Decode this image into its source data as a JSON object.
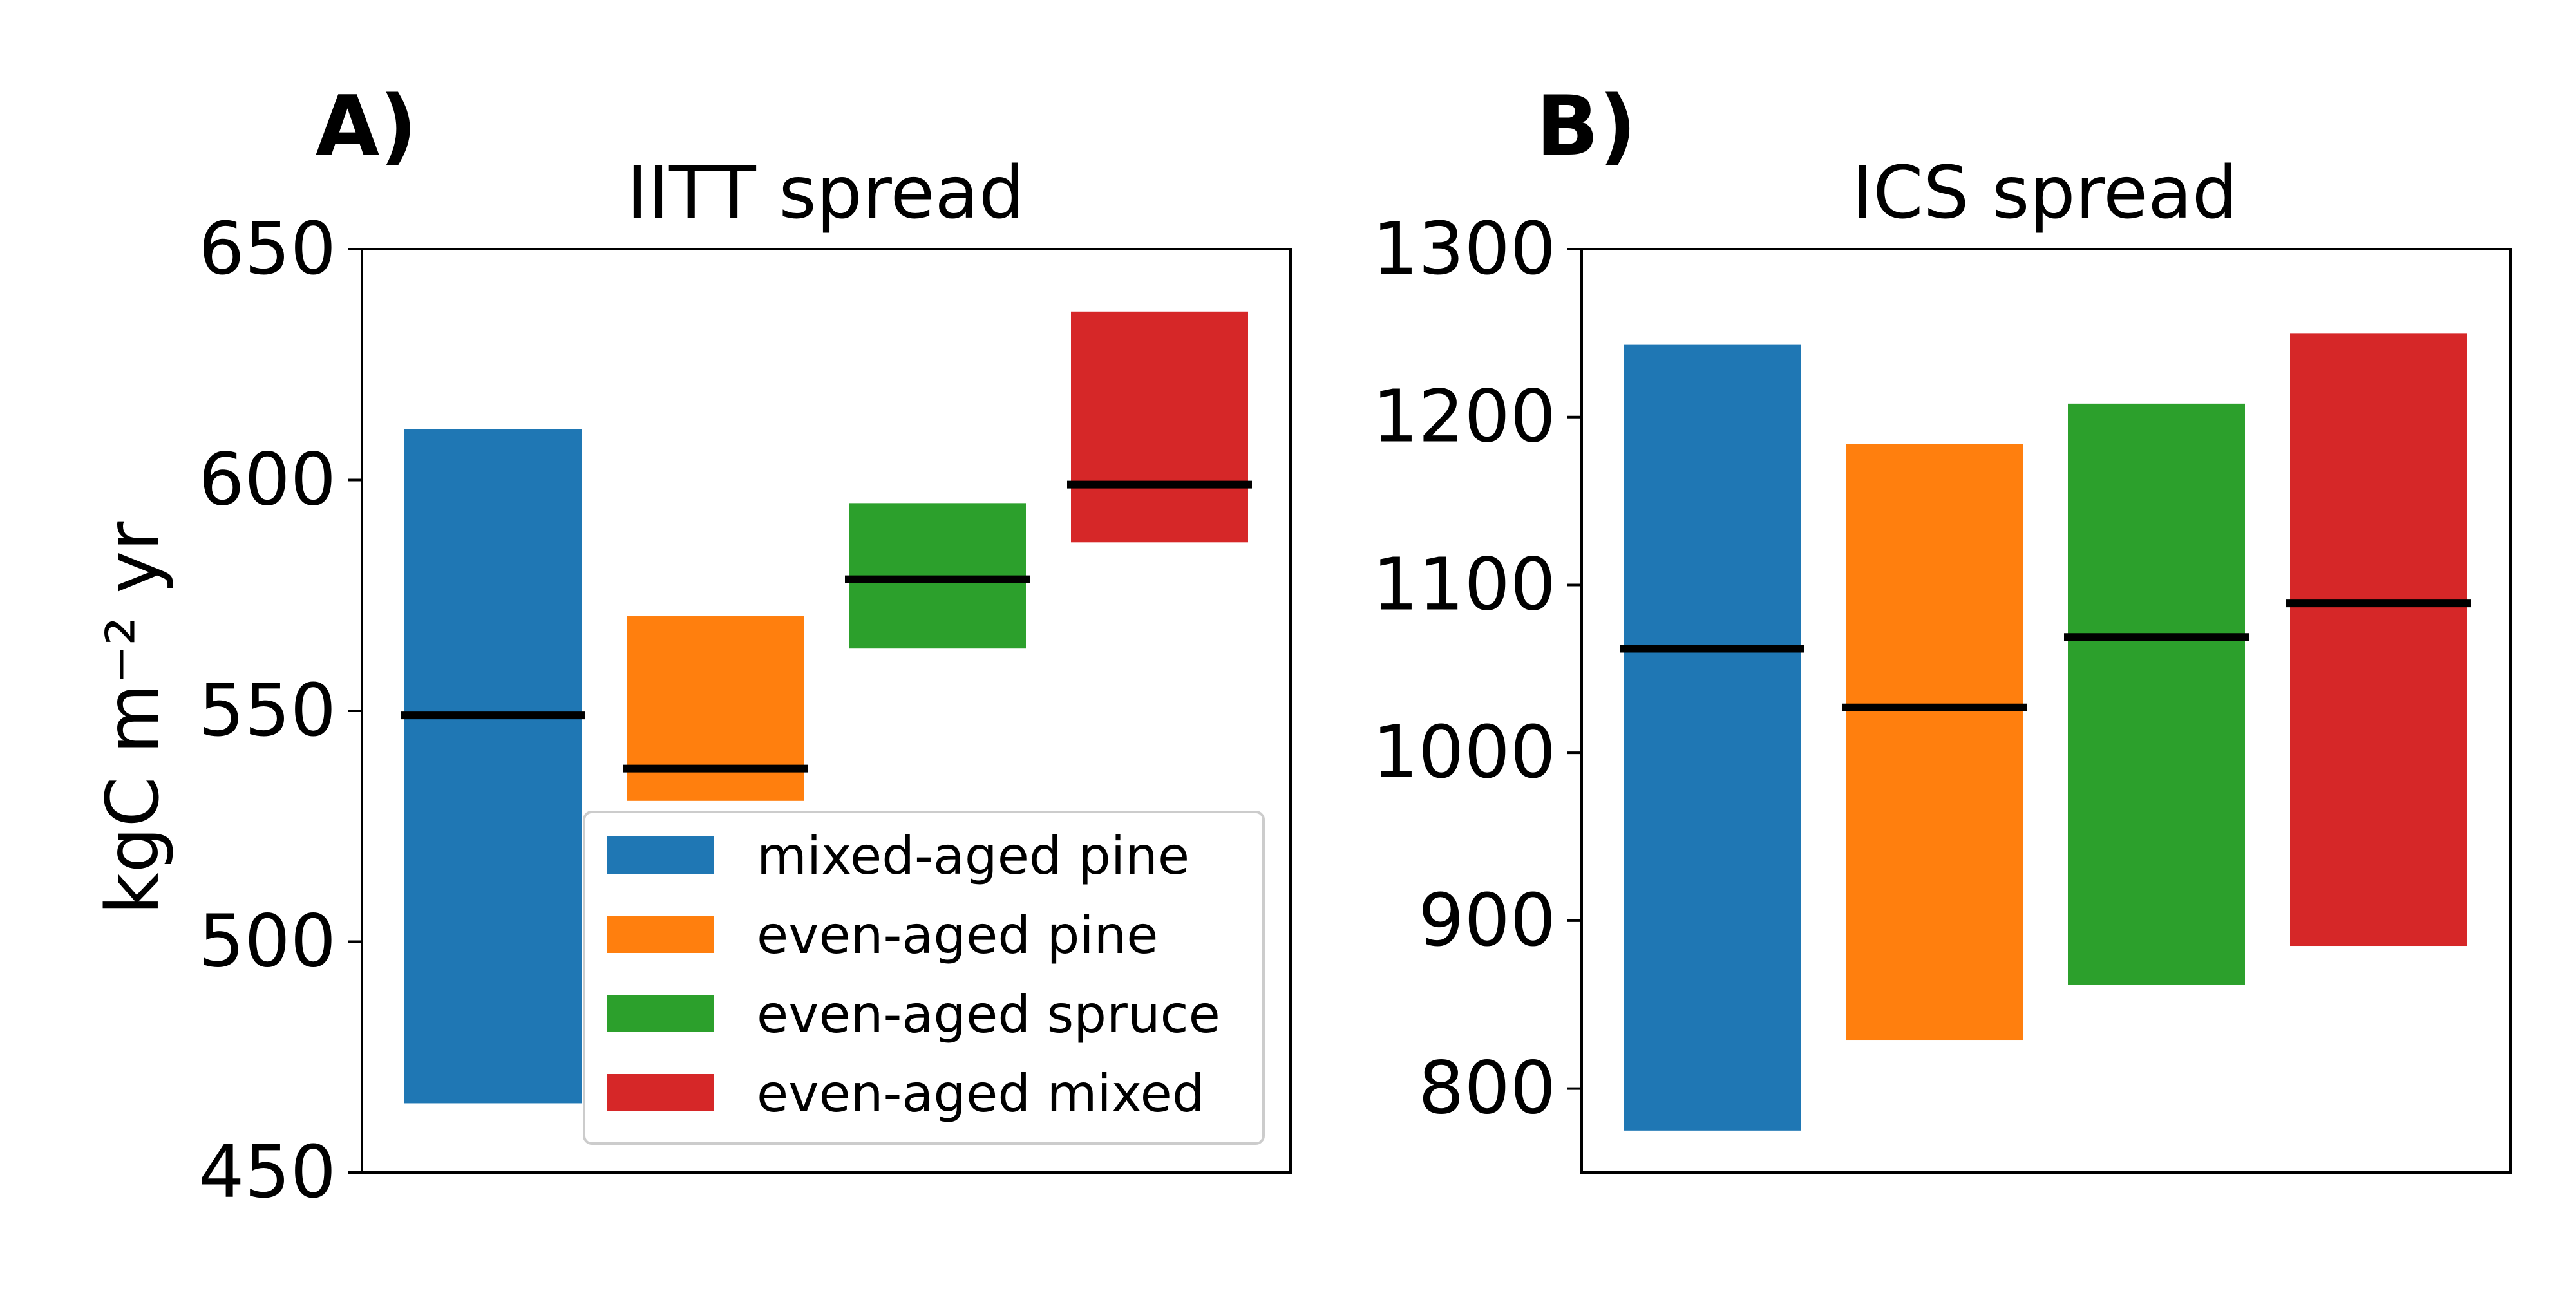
{
  "legend": {
    "entries": [
      {
        "label": "mixed-aged pine",
        "color": "#1f77b4"
      },
      {
        "label": "even-aged pine",
        "color": "#ff7f0e"
      },
      {
        "label": "even-aged spruce",
        "color": "#2ca02c"
      },
      {
        "label": "even-aged mixed",
        "color": "#d62728"
      }
    ],
    "placement": "lower-right"
  },
  "chart_data": [
    {
      "type": "bar",
      "panel_label": "A)",
      "title": "IITT spread",
      "ylabel": "kgC m⁻² yr",
      "ylim": [
        450,
        650
      ],
      "yticks": [
        450,
        500,
        550,
        600,
        650
      ],
      "grid": false,
      "series": [
        {
          "name": "mixed-aged pine",
          "color": "#1f77b4",
          "low": 465,
          "high": 611,
          "median": 549
        },
        {
          "name": "even-aged pine",
          "color": "#ff7f0e",
          "low": 530.5,
          "high": 570.5,
          "median": 537.5
        },
        {
          "name": "even-aged spruce",
          "color": "#2ca02c",
          "low": 563.5,
          "high": 595,
          "median": 578.5
        },
        {
          "name": "even-aged mixed",
          "color": "#d62728",
          "low": 586.5,
          "high": 636.5,
          "median": 599
        }
      ]
    },
    {
      "type": "bar",
      "panel_label": "B)",
      "title": "ICS spread",
      "ylabel": "",
      "ylim": [
        750,
        1300
      ],
      "yticks": [
        800,
        900,
        1000,
        1100,
        1200,
        1300
      ],
      "grid": false,
      "series": [
        {
          "name": "mixed-aged pine",
          "color": "#1f77b4",
          "low": 775,
          "high": 1243,
          "median": 1062
        },
        {
          "name": "even-aged pine",
          "color": "#ff7f0e",
          "low": 829,
          "high": 1184,
          "median": 1027
        },
        {
          "name": "even-aged spruce",
          "color": "#2ca02c",
          "low": 862,
          "high": 1208,
          "median": 1069
        },
        {
          "name": "even-aged mixed",
          "color": "#d62728",
          "low": 885,
          "high": 1250,
          "median": 1089
        }
      ]
    }
  ]
}
